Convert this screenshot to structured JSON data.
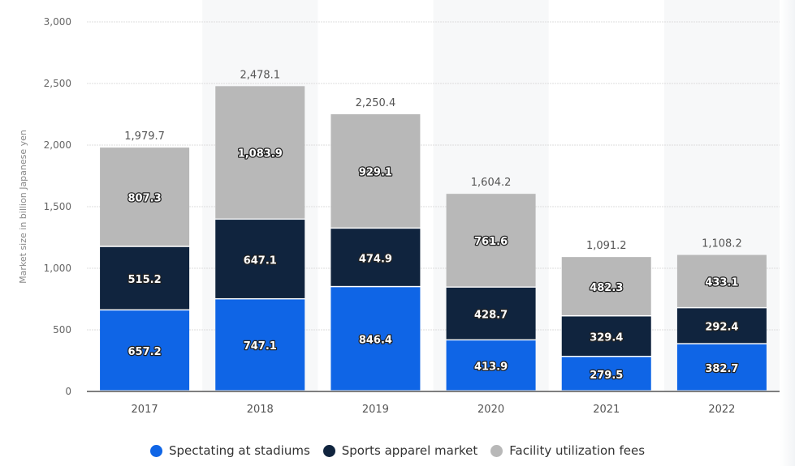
{
  "chart_data": {
    "type": "bar",
    "stacked": true,
    "title": "",
    "xlabel": "",
    "ylabel": "Market size in billion Japanese yen",
    "ylim": [
      0,
      3000
    ],
    "yticks": [
      0,
      500,
      1000,
      1500,
      2000,
      2500,
      3000
    ],
    "ytick_labels": [
      "0",
      "500",
      "1,000",
      "1,500",
      "2,000",
      "2,500",
      "3,000"
    ],
    "grid": true,
    "categories": [
      "2017",
      "2018",
      "2019",
      "2020",
      "2021",
      "2022"
    ],
    "series": [
      {
        "name": "Spectating at stadiums",
        "color": "#0f65e6",
        "values": [
          657.2,
          747.1,
          846.4,
          413.9,
          279.5,
          382.7
        ],
        "labels": [
          "657.2",
          "747.1",
          "846.4",
          "413.9",
          "279.5",
          "382.7"
        ]
      },
      {
        "name": "Sports apparel market",
        "color": "#10243e",
        "values": [
          515.2,
          647.1,
          474.9,
          428.7,
          329.4,
          292.4
        ],
        "labels": [
          "515.2",
          "647.1",
          "474.9",
          "428.7",
          "329.4",
          "292.4"
        ]
      },
      {
        "name": "Facility utilization fees",
        "color": "#b8b8b8",
        "values": [
          807.3,
          1083.9,
          929.1,
          761.6,
          482.3,
          433.1
        ],
        "labels": [
          "807.3",
          "1,083.9",
          "929.1",
          "761.6",
          "482.3",
          "433.1"
        ]
      }
    ],
    "totals": [
      "1,979.7",
      "2,478.1",
      "2,250.4",
      "1,604.2",
      "1,091.2",
      "1,108.2"
    ],
    "legend_position": "bottom-center"
  }
}
